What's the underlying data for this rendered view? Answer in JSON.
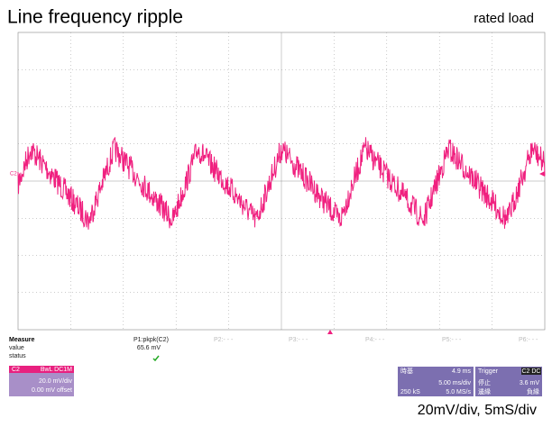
{
  "header": {
    "title": "Line frequency ripple",
    "subtitle": "rated load"
  },
  "scope": {
    "channel_marker": "C2"
  },
  "measure": {
    "heading": "Measure",
    "row_labels": [
      "value",
      "status"
    ],
    "params": [
      {
        "name": "P1:pkpk(C2)",
        "value": "65.6 mV"
      },
      {
        "name": "P2:- - -"
      },
      {
        "name": "P3:- - -"
      },
      {
        "name": "P4:- - -"
      },
      {
        "name": "P5:- - -"
      },
      {
        "name": "P6:- - -"
      }
    ]
  },
  "channel": {
    "name": "C2",
    "coupling": "BwL DC1M",
    "scale": "20.0 mV/div",
    "offset": "0.00 mV offset"
  },
  "timebase": {
    "label": "時基",
    "delay": "4.9 ms",
    "scale": "5.00 ms/div",
    "samples": "250 kS",
    "rate": "5.0 MS/s"
  },
  "trigger": {
    "label": "Trigger",
    "source": "C2 DC",
    "mode": "停止",
    "level": "3.6 mV",
    "type": "邊緣",
    "slope": "負緣"
  },
  "caption": "20mV/div, 5mS/div"
}
